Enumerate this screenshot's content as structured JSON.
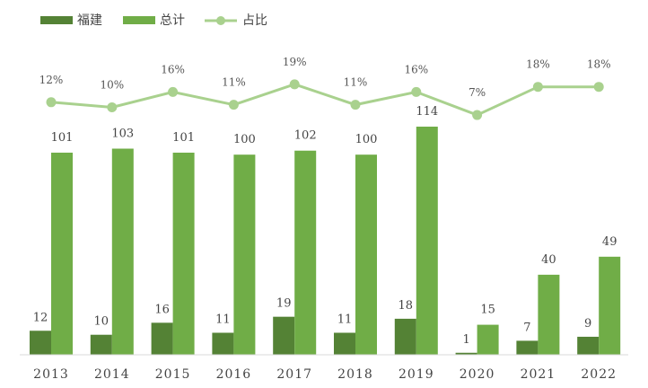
{
  "chart_data": {
    "type": "bar+line",
    "categories": [
      "2013",
      "2014",
      "2015",
      "2016",
      "2017",
      "2018",
      "2019",
      "2020",
      "2021",
      "2022"
    ],
    "series": [
      {
        "name": "福建",
        "type": "bar",
        "color": "#548235",
        "values": [
          12,
          10,
          16,
          11,
          19,
          11,
          18,
          1,
          7,
          9
        ]
      },
      {
        "name": "总计",
        "type": "bar",
        "color": "#70ad47",
        "values": [
          101,
          103,
          101,
          100,
          102,
          100,
          114,
          15,
          40,
          49
        ]
      },
      {
        "name": "占比",
        "type": "line",
        "color": "#a9d18e",
        "values": [
          12,
          10,
          16,
          11,
          19,
          11,
          16,
          7,
          18,
          18
        ],
        "labels": [
          "12%",
          "10%",
          "16%",
          "11%",
          "19%",
          "11%",
          "16%",
          "7%",
          "18%",
          "18%"
        ]
      }
    ],
    "ylim": [
      0,
      114
    ],
    "legend": "top-left",
    "grid": false
  }
}
